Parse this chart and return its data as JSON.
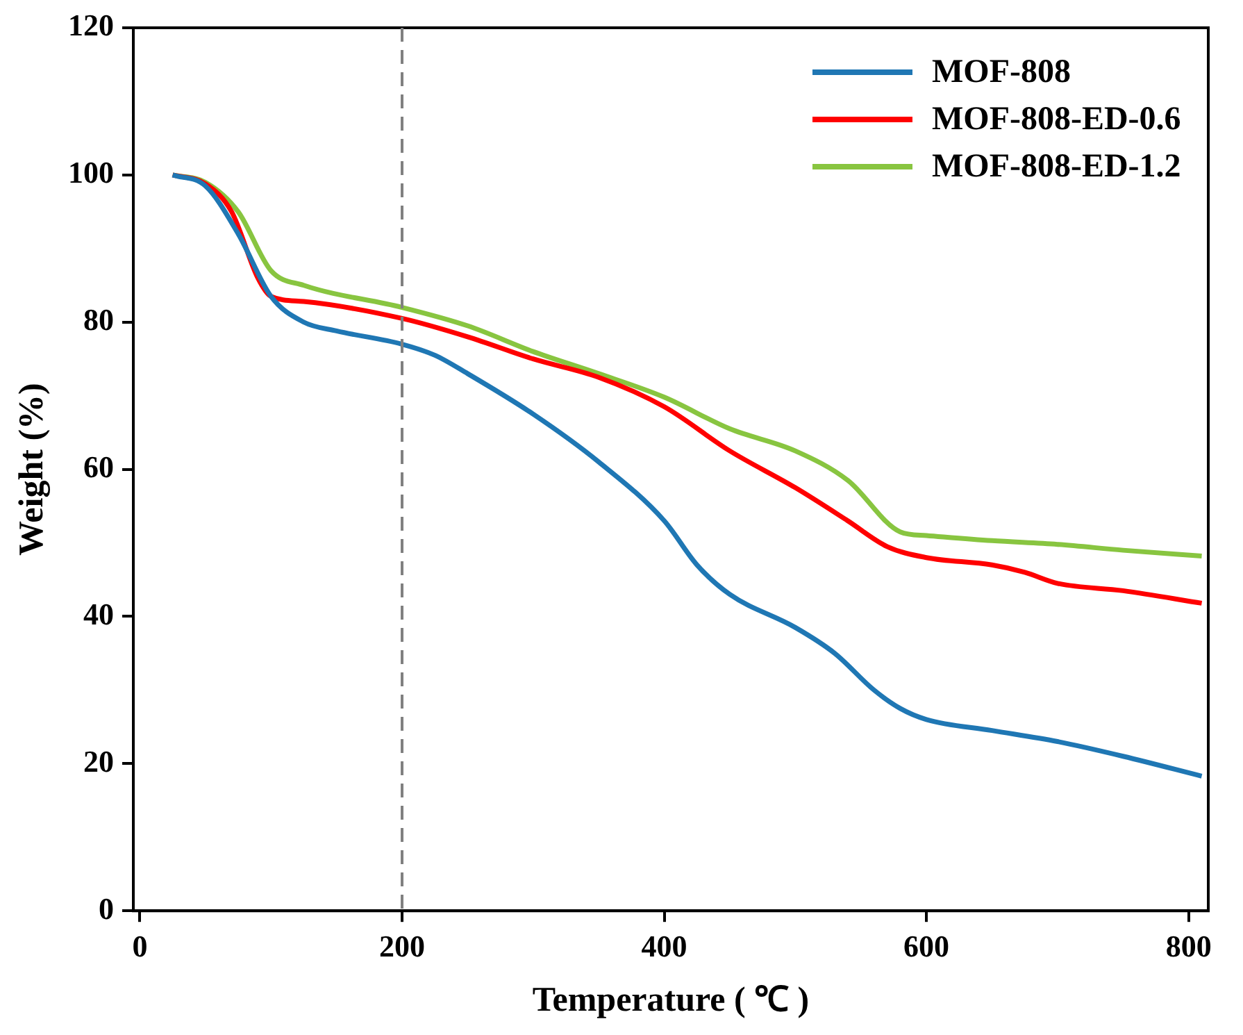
{
  "chart_data": {
    "type": "line",
    "xlabel": "Temperature ( ℃ )",
    "ylabel": "Weight (%)",
    "xlim": [
      -5,
      815
    ],
    "xticks": [
      0,
      200,
      400,
      600,
      800
    ],
    "ylim": [
      0,
      120
    ],
    "yticks": [
      0,
      20,
      40,
      60,
      80,
      100,
      120
    ],
    "grid": false,
    "legend": "top right",
    "marker": "none",
    "line_style": "solid",
    "ref_lines": [
      {
        "axis": "x",
        "value": 200,
        "color": "#808080",
        "line_style": "dashed"
      }
    ],
    "series": [
      {
        "name": "MOF-808",
        "color": "#1f77b4",
        "x": [
          25,
          50,
          75,
          100,
          125,
          150,
          200,
          225,
          250,
          300,
          350,
          400,
          425,
          450,
          500,
          530,
          560,
          580,
          600,
          650,
          700,
          750,
          810
        ],
        "values": [
          100,
          98.5,
          92,
          83.5,
          80,
          78.8,
          77,
          75.5,
          73,
          67.5,
          61,
          53,
          47,
          43,
          38.5,
          35,
          30,
          27.5,
          26,
          24.5,
          23,
          21,
          18.3
        ]
      },
      {
        "name": "MOF-808-ED-0.6",
        "color": "#ff0000",
        "x": [
          25,
          50,
          70,
          90,
          100,
          125,
          200,
          250,
          300,
          350,
          400,
          450,
          500,
          540,
          570,
          600,
          650,
          675,
          700,
          750,
          810
        ],
        "values": [
          100,
          98.8,
          95,
          86,
          83.5,
          82.8,
          80.5,
          78,
          75,
          72.5,
          68.5,
          62.5,
          57.5,
          53,
          49.5,
          48,
          47,
          46,
          44.5,
          43.5,
          41.8
        ]
      },
      {
        "name": "MOF-808-ED-1.2",
        "color": "#88c540",
        "x": [
          25,
          50,
          75,
          100,
          125,
          200,
          250,
          300,
          350,
          400,
          450,
          500,
          540,
          580,
          600,
          650,
          700,
          750,
          810
        ],
        "values": [
          100,
          99,
          95,
          87,
          85,
          82,
          79.5,
          76,
          73,
          69.8,
          65.5,
          62.5,
          58.5,
          51.5,
          51,
          50.3,
          49.8,
          49,
          48.2
        ]
      }
    ]
  }
}
